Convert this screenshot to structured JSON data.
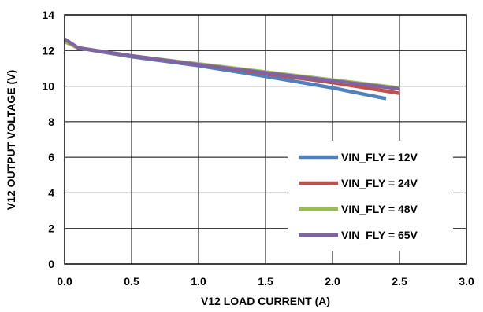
{
  "chart_data": {
    "type": "line",
    "title": "",
    "xlabel": "V12 LOAD CURRENT (A)",
    "ylabel": "V12 OUTPUT VOLTAGE (V)",
    "xlim": [
      0,
      3
    ],
    "ylim": [
      0,
      14
    ],
    "xticks": [
      "0.0",
      "0.5",
      "1.0",
      "1.5",
      "2.0",
      "2.5",
      "3.0"
    ],
    "yticks": [
      "0",
      "2",
      "4",
      "6",
      "8",
      "10",
      "12",
      "14"
    ],
    "grid": true,
    "legend_position": "bottom-right",
    "series": [
      {
        "name": "VIN_FLY = 12V",
        "color": "#4f81bd",
        "x": [
          0.0,
          0.1,
          0.5,
          1.0,
          1.5,
          2.0,
          2.4
        ],
        "y": [
          12.6,
          12.15,
          11.65,
          11.15,
          10.55,
          9.9,
          9.3
        ]
      },
      {
        "name": "VIN_FLY = 24V",
        "color": "#c0504d",
        "x": [
          0.0,
          0.1,
          0.5,
          1.0,
          1.5,
          2.0,
          2.5
        ],
        "y": [
          12.6,
          12.15,
          11.7,
          11.2,
          10.7,
          10.2,
          9.6
        ]
      },
      {
        "name": "VIN_FLY = 48V",
        "color": "#9bbb59",
        "x": [
          0.0,
          0.1,
          0.5,
          1.0,
          1.5,
          2.0,
          2.5
        ],
        "y": [
          12.5,
          12.15,
          11.7,
          11.25,
          10.8,
          10.35,
          9.9
        ]
      },
      {
        "name": "VIN_FLY = 65V",
        "color": "#8064a2",
        "x": [
          0.0,
          0.1,
          0.5,
          1.0,
          1.5,
          2.0,
          2.5
        ],
        "y": [
          12.65,
          12.15,
          11.7,
          11.2,
          10.75,
          10.3,
          9.85
        ]
      }
    ]
  }
}
